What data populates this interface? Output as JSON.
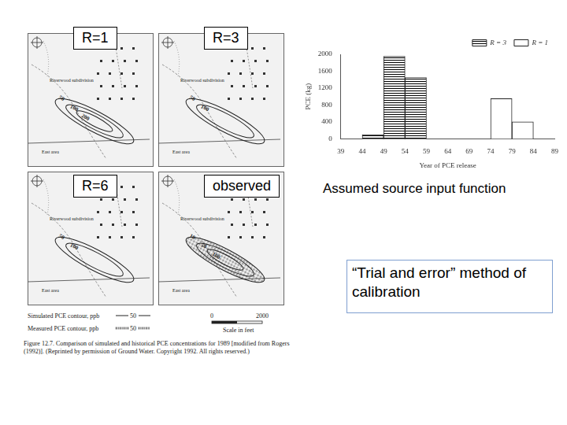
{
  "chart_data": {
    "type": "bar",
    "x_label": "Year of PCE release",
    "y_label": "PCE (kg)",
    "bins": [
      39,
      44,
      49,
      54,
      59,
      64,
      69,
      74,
      79,
      84,
      89
    ],
    "series": [
      {
        "name": "R = 3",
        "color": "#000000",
        "values": [
          0,
          100,
          1950,
          1450,
          0,
          0,
          0,
          0,
          0,
          0
        ]
      },
      {
        "name": "R = 1",
        "color": "#ffffff",
        "values": [
          0,
          0,
          0,
          0,
          0,
          0,
          0,
          950,
          400,
          0
        ]
      }
    ],
    "xlim": [
      39,
      89
    ],
    "xticks": [
      39,
      44,
      49,
      54,
      59,
      64,
      69,
      74,
      79,
      84,
      89
    ],
    "ylim": [
      0,
      2000
    ],
    "yticks": [
      0,
      400,
      800,
      1200,
      1600,
      2000
    ],
    "legend": "upper right",
    "grid": false
  },
  "slide": {
    "panels": [
      {
        "label": "R=1",
        "map_labels": [
          "Riverwood subdivision",
          "East area"
        ],
        "contours": [
          50,
          100,
          200
        ]
      },
      {
        "label": "R=3",
        "map_labels": [
          "Riverwood subdivision",
          "East area"
        ],
        "contours": [
          50,
          100
        ]
      },
      {
        "label": "R=6",
        "map_labels": [
          "Riverwood subdivision",
          "East area"
        ],
        "contours": [
          50,
          100
        ]
      },
      {
        "label": "observed",
        "map_labels": [
          "Riverwood subdivision",
          "East area"
        ],
        "contours": [
          10,
          50,
          100
        ]
      }
    ],
    "figure_legend": {
      "simulated": "Simulated PCE contour, ppb",
      "measured": "Measured PCE contour, ppb",
      "sample_contour": 50,
      "scale_start": 0,
      "scale_end": 2000,
      "scale_label": "Scale in feet"
    },
    "caption": "Figure 12.7. Comparison of simulated and historical PCE concentrations for 1989 [modified from Rogers (1992)]. (Reprinted by permission of Ground Water. Copyright 1992. All rights reserved.)",
    "chart_caption": "Assumed source input function",
    "callout": "“Trial and error” method of calibration"
  }
}
